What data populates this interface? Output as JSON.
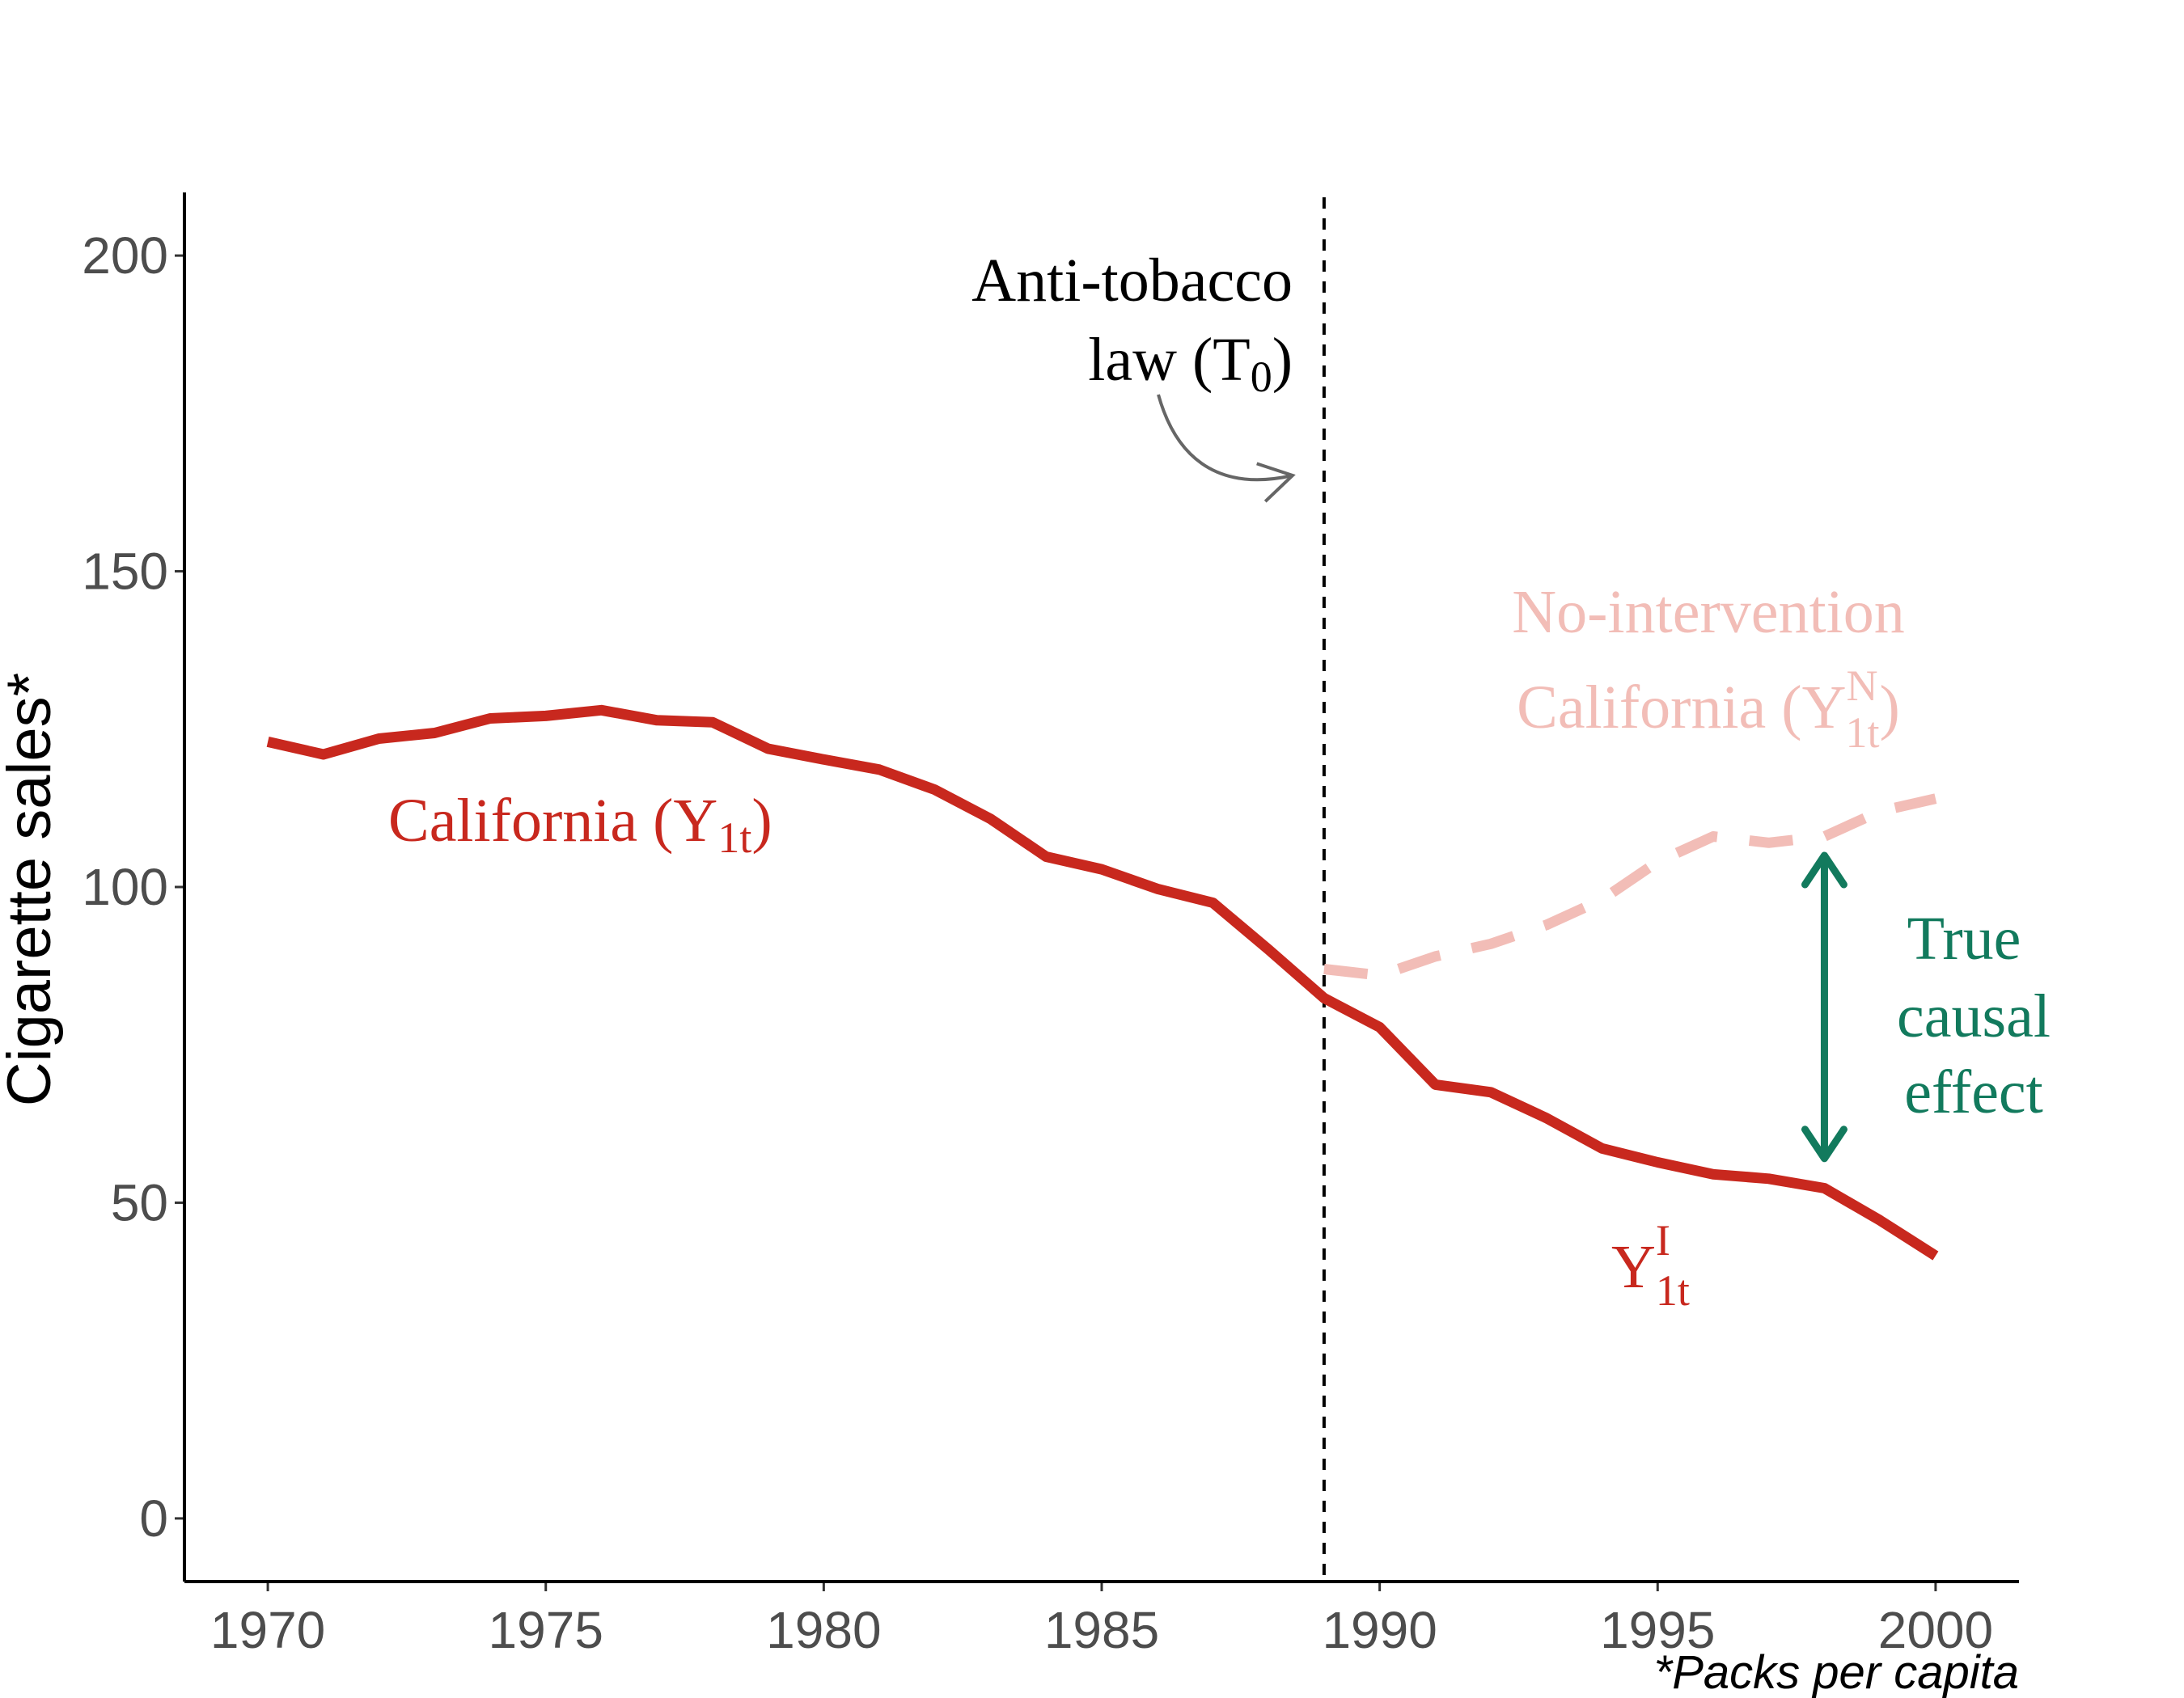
{
  "chart_data": {
    "type": "line",
    "x_ticks": [
      1970,
      1975,
      1980,
      1985,
      1990,
      1995,
      2000
    ],
    "y_ticks": [
      0,
      50,
      100,
      150,
      200
    ],
    "xlim": [
      1968.5,
      2001.5
    ],
    "ylim": [
      -10,
      210
    ],
    "ylabel": "Cigarette sales*",
    "caption": "*Packs per capita",
    "grid": false,
    "intervention": {
      "year": 1989,
      "label_line1": "Anti-tobacco",
      "label_line2": "law (T",
      "label_sub": "0",
      "label_close": ")"
    },
    "series": [
      {
        "name": "California",
        "label_main": "California (Y",
        "label_sub": "1t",
        "label_close": ")",
        "style": "solid",
        "color": "#c8281e",
        "x": [
          1970,
          1971,
          1972,
          1973,
          1974,
          1975,
          1976,
          1977,
          1978,
          1979,
          1980,
          1981,
          1982,
          1983,
          1984,
          1985,
          1986,
          1987,
          1988,
          1989,
          1990,
          1991,
          1992,
          1993,
          1994,
          1995,
          1996,
          1997,
          1998,
          1999,
          2000
        ],
        "y": [
          123.0,
          121.0,
          123.5,
          124.4,
          126.7,
          127.1,
          128.0,
          126.4,
          126.1,
          121.9,
          120.2,
          118.6,
          115.4,
          110.8,
          104.8,
          102.8,
          99.7,
          97.5,
          90.1,
          82.4,
          77.8,
          68.7,
          67.5,
          63.4,
          58.6,
          56.4,
          54.5,
          53.8,
          52.3,
          47.2,
          41.6
        ]
      },
      {
        "name": "No-intervention California",
        "label_line1": "No-intervention",
        "label_line2": "California (Y",
        "label_sup": "N",
        "label_sub": "1t",
        "label_close": ")",
        "style": "dashed",
        "color": "#f2bdb7",
        "x": [
          1989,
          1990,
          1991,
          1992,
          1993,
          1994,
          1995,
          1996,
          1997,
          1998,
          1999,
          2000
        ],
        "y": [
          87.0,
          86.0,
          89.0,
          91.0,
          94.0,
          98.0,
          104.0,
          108.0,
          107.0,
          108.0,
          112.0,
          114.0
        ]
      }
    ],
    "annotations": {
      "yi_main": "Y",
      "yi_sup": "I",
      "yi_sub": "1t",
      "effect_line1": "True",
      "effect_line2": "causal",
      "effect_line3": "effect",
      "effect_year": 1998,
      "effect_range": [
        57,
        105
      ],
      "effect_color": "#127a5d",
      "axis_color": "#000000",
      "arrow_color": "#666666"
    }
  }
}
